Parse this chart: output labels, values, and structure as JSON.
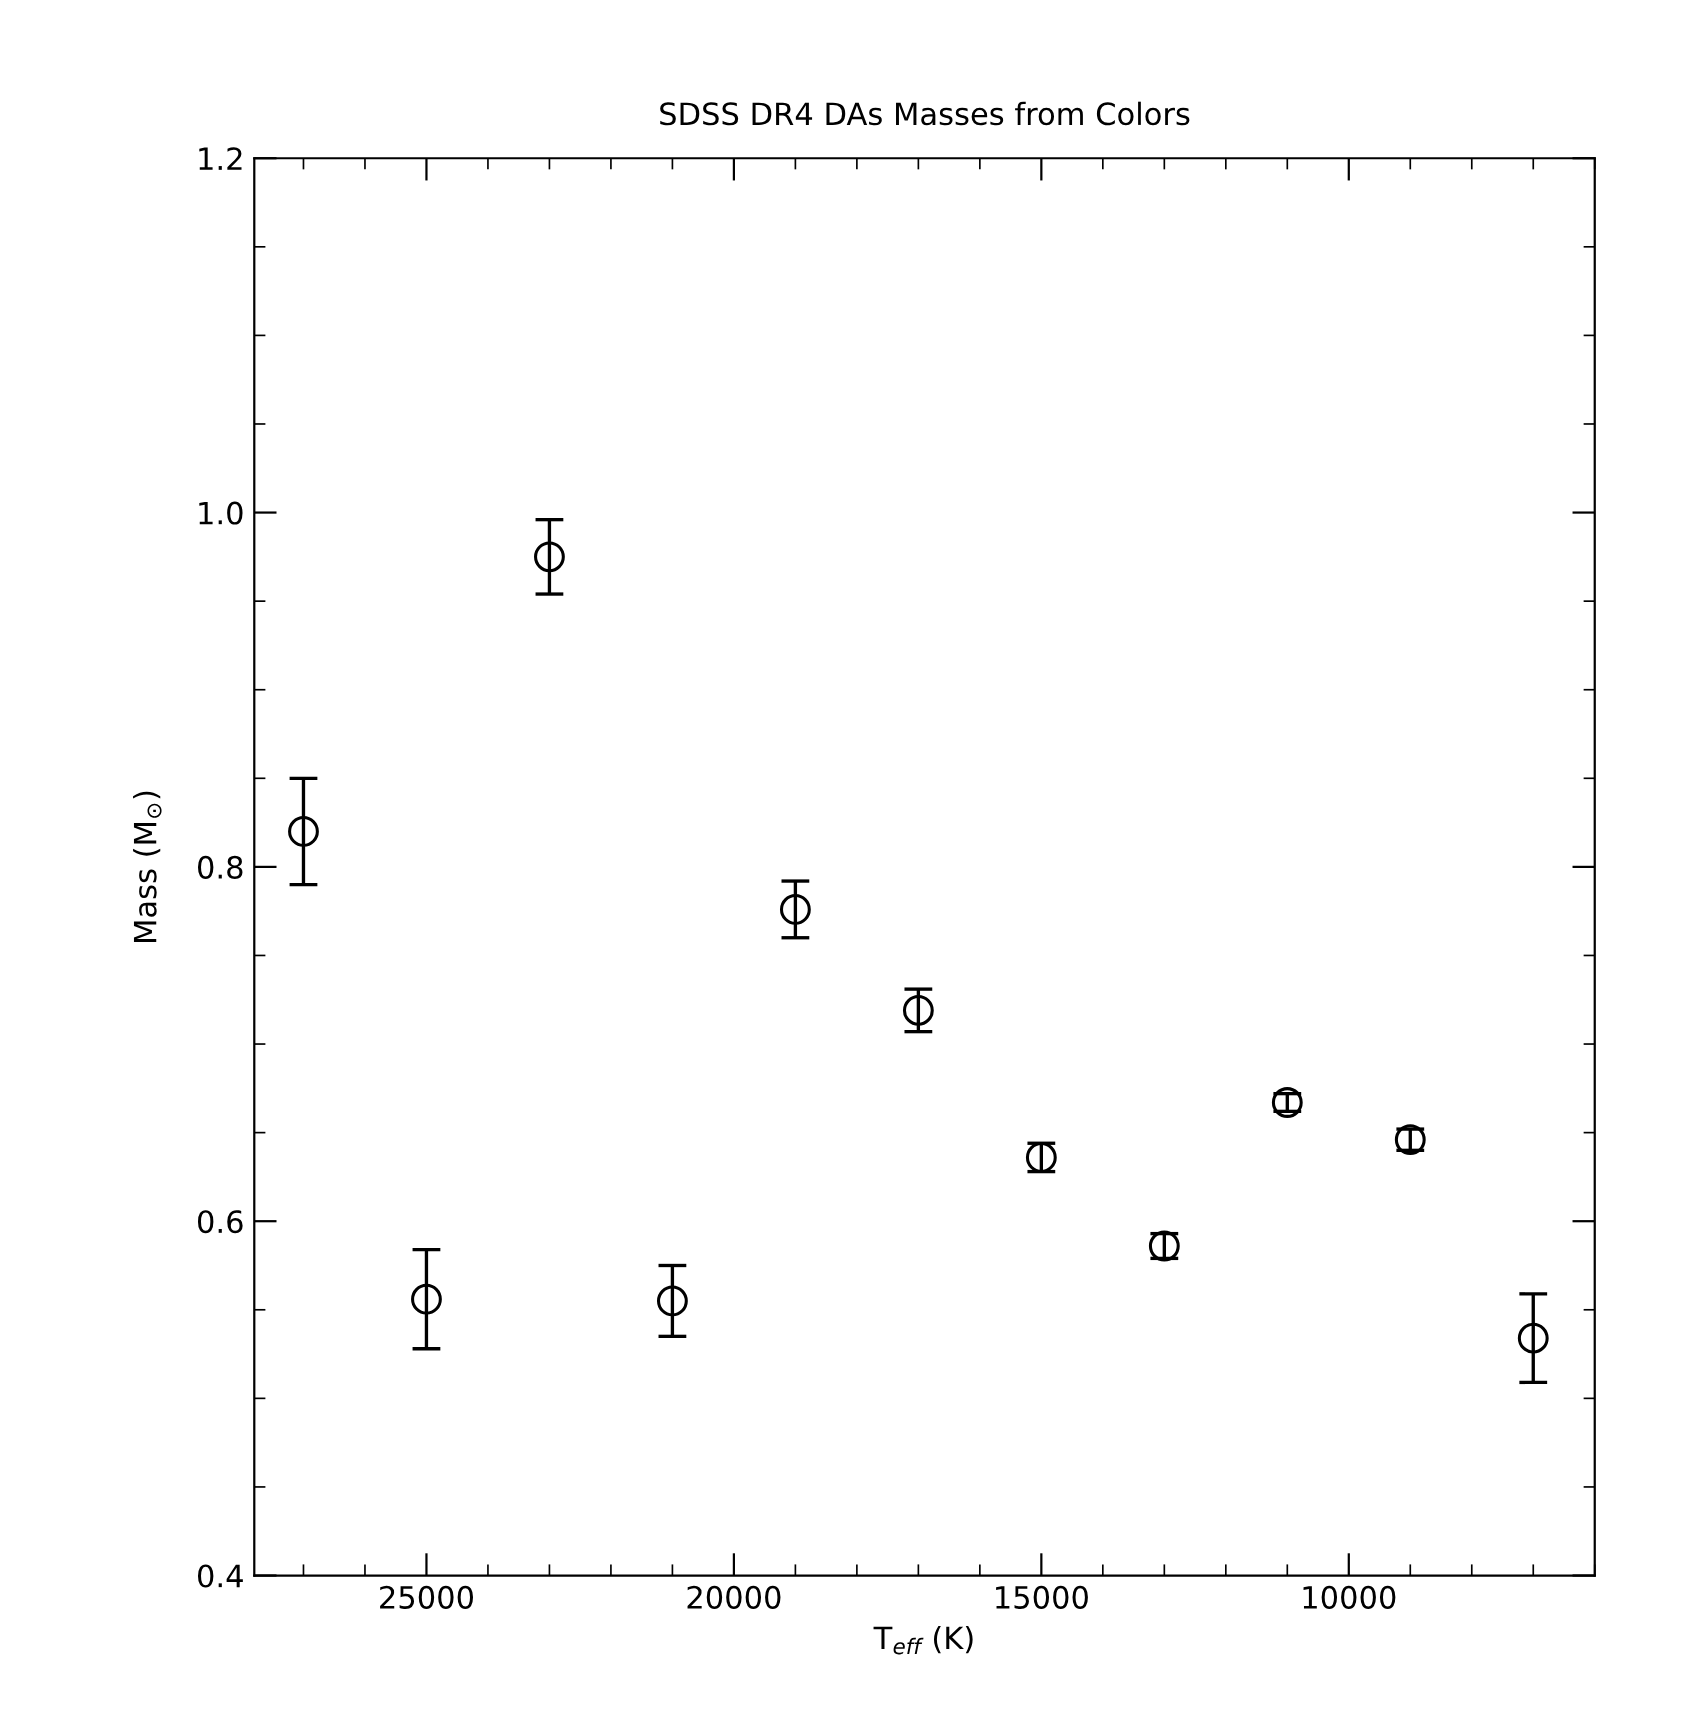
{
  "chart_data": {
    "type": "scatter",
    "title": "SDSS DR4 DAs Masses from Colors",
    "xlabel": "T$_{eff}$ (K)",
    "ylabel": "Mass (M$_{⊙}$)",
    "x": [
      27000,
      25000,
      23000,
      21000,
      19000,
      17000,
      15000,
      13000,
      11000,
      9000,
      7000
    ],
    "values": [
      0.82,
      0.556,
      0.975,
      0.555,
      0.776,
      0.719,
      0.636,
      0.586,
      0.667,
      0.646,
      0.534
    ],
    "errors": [
      0.03,
      0.028,
      0.021,
      0.02,
      0.016,
      0.012,
      0.008,
      0.007,
      0.005,
      0.006,
      0.025
    ],
    "color": "#000000",
    "marker": "circle",
    "xlim": [
      27800,
      6000
    ],
    "xticks": [
      25000,
      20000,
      15000,
      10000
    ],
    "ylim": [
      0.4,
      1.2
    ],
    "yticks": [
      0.4,
      0.6,
      0.8,
      {
        "value": 1,
        "label": "1.0"
      },
      1.2
    ],
    "grid": false,
    "legend": false
  }
}
